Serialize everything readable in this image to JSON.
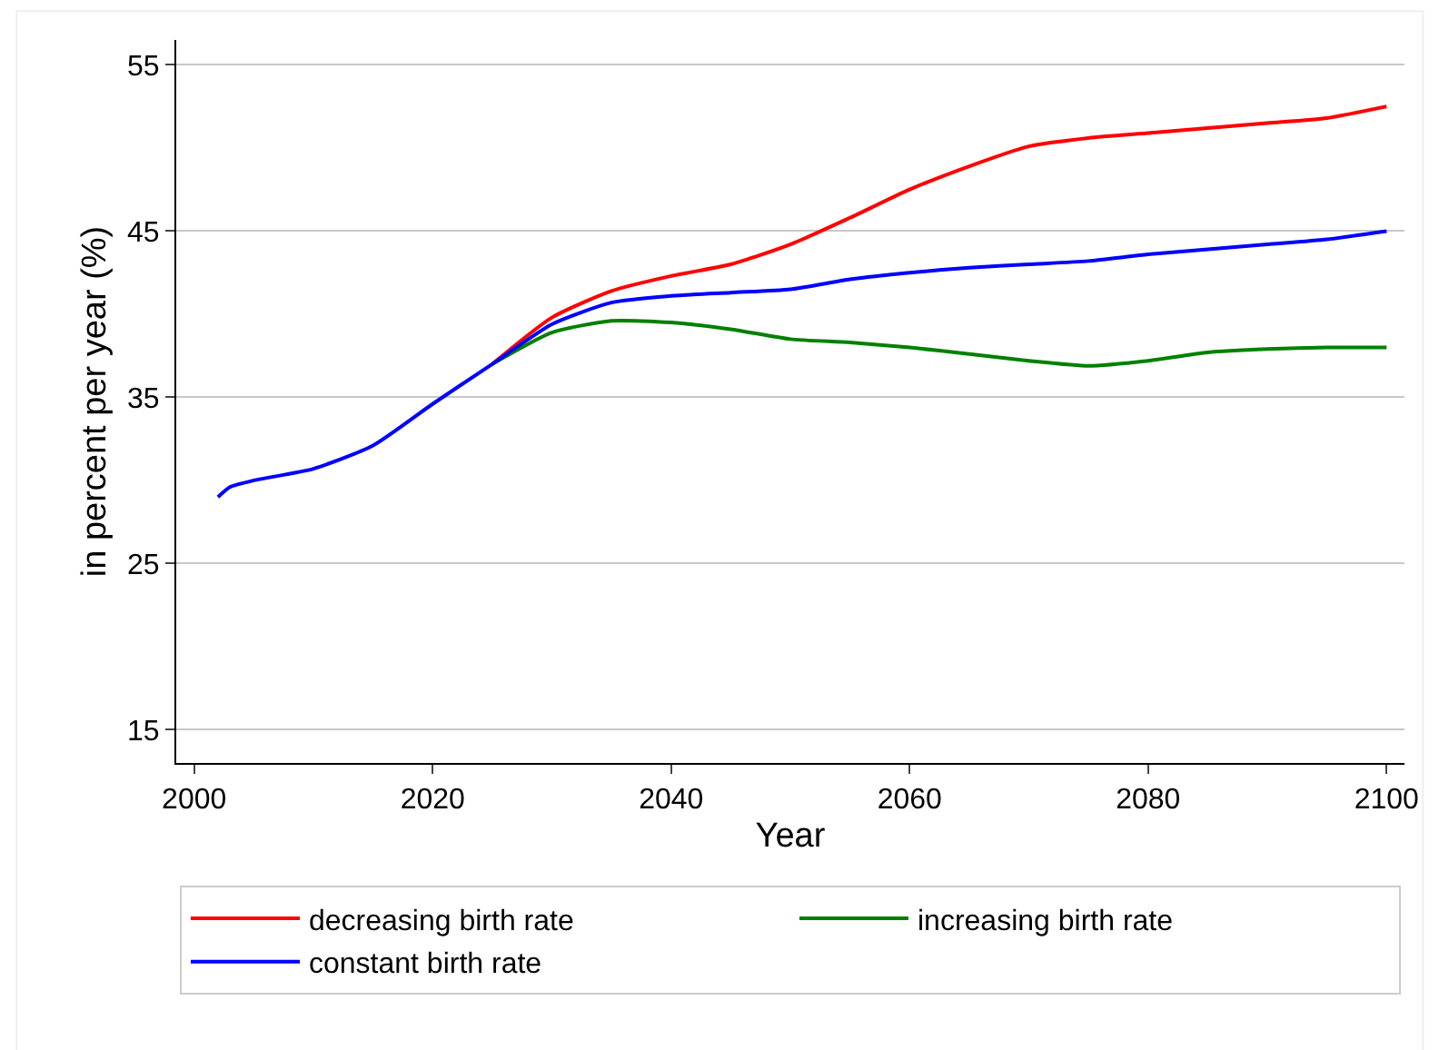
{
  "chart_data": {
    "type": "line",
    "xlabel": "Year",
    "ylabel": "in percent per year (%)",
    "x": [
      2002,
      2003,
      2005,
      2010,
      2015,
      2020,
      2025,
      2030,
      2035,
      2040,
      2045,
      2050,
      2055,
      2060,
      2065,
      2070,
      2075,
      2080,
      2085,
      2090,
      2095,
      2100
    ],
    "series": [
      {
        "name": "decreasing birth rate",
        "color": "#ff0000",
        "values": [
          null,
          null,
          null,
          null,
          null,
          null,
          37.0,
          39.8,
          41.4,
          42.3,
          43.0,
          44.2,
          45.8,
          47.5,
          48.9,
          50.1,
          50.6,
          50.9,
          51.2,
          51.5,
          51.8,
          52.5
        ]
      },
      {
        "name": "increasing birth rate",
        "color": "#008000",
        "values": [
          null,
          null,
          null,
          null,
          null,
          null,
          37.0,
          38.9,
          39.6,
          39.5,
          39.1,
          38.5,
          38.3,
          38.0,
          37.6,
          37.2,
          36.9,
          37.2,
          37.7,
          37.9,
          38.0,
          38.0
        ]
      },
      {
        "name": "constant birth rate",
        "color": "#0000ff",
        "values": [
          29.0,
          29.6,
          30.0,
          30.7,
          32.1,
          34.6,
          37.0,
          39.4,
          40.7,
          41.1,
          41.3,
          41.5,
          42.1,
          42.5,
          42.8,
          43.0,
          43.2,
          43.6,
          43.9,
          44.2,
          44.5,
          45.0
        ]
      }
    ],
    "xlim": [
      1998.5,
      2101.5
    ],
    "ylim": [
      13,
      56.5
    ],
    "xticks": [
      2000,
      2020,
      2040,
      2060,
      2080,
      2100
    ],
    "yticks": [
      15,
      25,
      35,
      45,
      55
    ],
    "grid": "y",
    "legend": "bottom",
    "line_style": "solid",
    "marker": "none"
  }
}
